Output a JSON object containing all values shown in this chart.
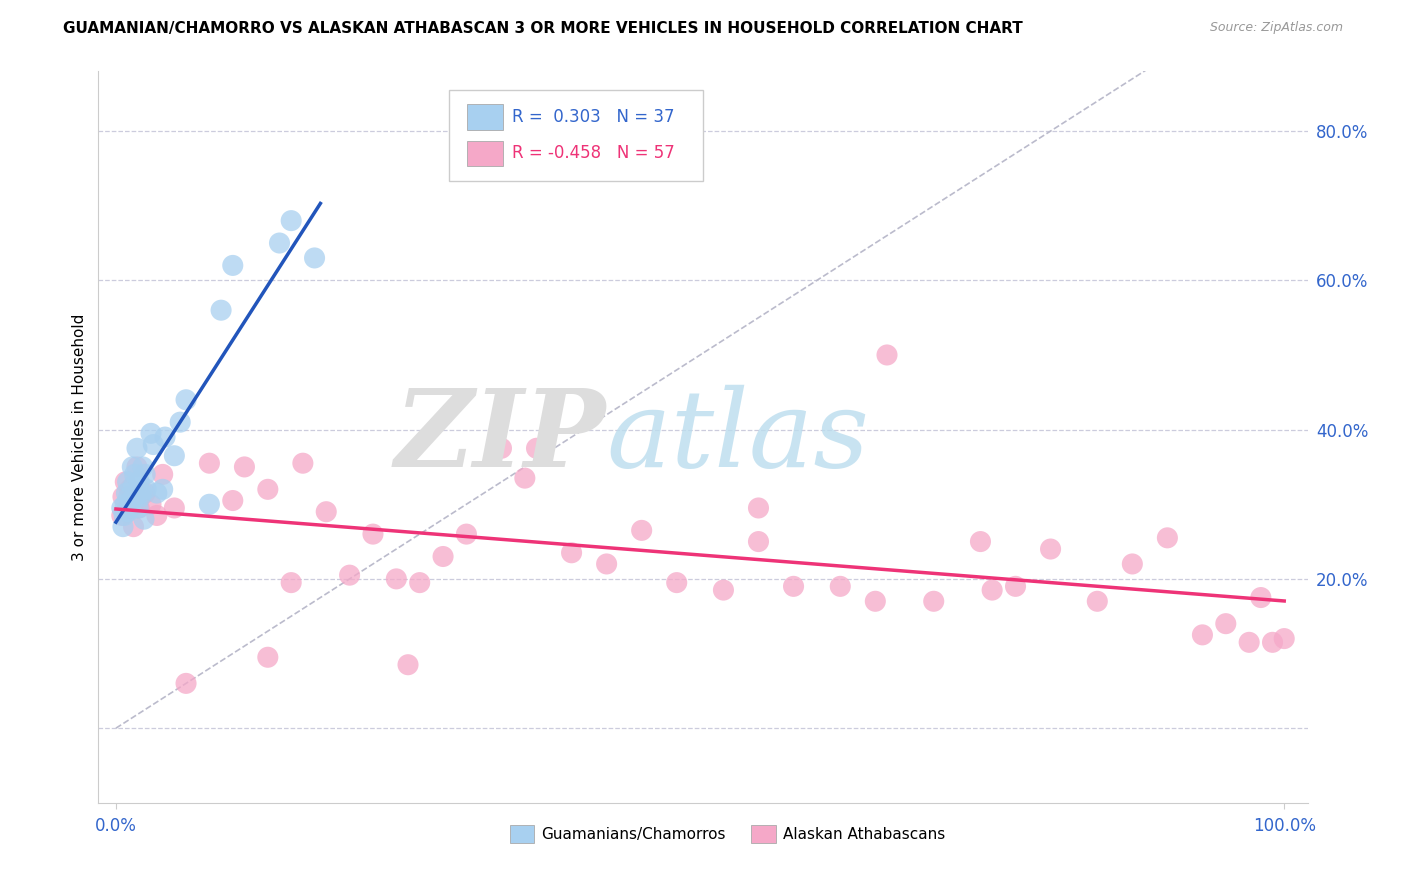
{
  "title": "GUAMANIAN/CHAMORRO VS ALASKAN ATHABASCAN 3 OR MORE VEHICLES IN HOUSEHOLD CORRELATION CHART",
  "source": "Source: ZipAtlas.com",
  "ylabel": "3 or more Vehicles in Household",
  "color_blue": "#A8D0F0",
  "color_pink": "#F5A8C8",
  "color_line_blue": "#2255BB",
  "color_line_pink": "#EE3377",
  "color_diag": "#BBBBCC",
  "legend_r1": "0.303",
  "legend_n1": "37",
  "legend_r2": "-0.458",
  "legend_n2": "57",
  "xlim_min": -0.015,
  "xlim_max": 1.02,
  "ylim_min": -0.1,
  "ylim_max": 0.88,
  "yticks": [
    0.0,
    0.2,
    0.4,
    0.6,
    0.8
  ],
  "ytick_labels_right": [
    "",
    "20.0%",
    "40.0%",
    "60.0%",
    "80.0%"
  ],
  "xtick_positions": [
    0.0,
    1.0
  ],
  "xtick_labels": [
    "0.0%",
    "100.0%"
  ],
  "guamanian_x": [
    0.005,
    0.006,
    0.007,
    0.008,
    0.009,
    0.01,
    0.01,
    0.011,
    0.012,
    0.013,
    0.014,
    0.015,
    0.016,
    0.017,
    0.018,
    0.019,
    0.02,
    0.021,
    0.022,
    0.023,
    0.024,
    0.025,
    0.026,
    0.03,
    0.032,
    0.035,
    0.04,
    0.042,
    0.05,
    0.055,
    0.06,
    0.08,
    0.09,
    0.1,
    0.14,
    0.15,
    0.17
  ],
  "guamanian_y": [
    0.295,
    0.27,
    0.285,
    0.3,
    0.315,
    0.33,
    0.29,
    0.31,
    0.295,
    0.305,
    0.35,
    0.325,
    0.34,
    0.31,
    0.375,
    0.295,
    0.33,
    0.31,
    0.315,
    0.35,
    0.28,
    0.34,
    0.32,
    0.395,
    0.38,
    0.315,
    0.32,
    0.39,
    0.365,
    0.41,
    0.44,
    0.3,
    0.56,
    0.62,
    0.65,
    0.68,
    0.63
  ],
  "athabascan_x": [
    0.005,
    0.006,
    0.008,
    0.01,
    0.012,
    0.015,
    0.018,
    0.02,
    0.025,
    0.03,
    0.035,
    0.04,
    0.05,
    0.06,
    0.08,
    0.1,
    0.11,
    0.13,
    0.15,
    0.16,
    0.18,
    0.2,
    0.22,
    0.24,
    0.26,
    0.28,
    0.3,
    0.33,
    0.36,
    0.39,
    0.42,
    0.45,
    0.48,
    0.52,
    0.55,
    0.58,
    0.62,
    0.66,
    0.7,
    0.74,
    0.77,
    0.8,
    0.84,
    0.87,
    0.9,
    0.93,
    0.95,
    0.97,
    0.98,
    0.99,
    1.0,
    0.65,
    0.75,
    0.55,
    0.13,
    0.25,
    0.35
  ],
  "athabascan_y": [
    0.285,
    0.31,
    0.33,
    0.295,
    0.32,
    0.27,
    0.35,
    0.295,
    0.315,
    0.3,
    0.285,
    0.34,
    0.295,
    0.06,
    0.355,
    0.305,
    0.35,
    0.32,
    0.195,
    0.355,
    0.29,
    0.205,
    0.26,
    0.2,
    0.195,
    0.23,
    0.26,
    0.375,
    0.375,
    0.235,
    0.22,
    0.265,
    0.195,
    0.185,
    0.25,
    0.19,
    0.19,
    0.5,
    0.17,
    0.25,
    0.19,
    0.24,
    0.17,
    0.22,
    0.255,
    0.125,
    0.14,
    0.115,
    0.175,
    0.115,
    0.12,
    0.17,
    0.185,
    0.295,
    0.095,
    0.085,
    0.335
  ]
}
